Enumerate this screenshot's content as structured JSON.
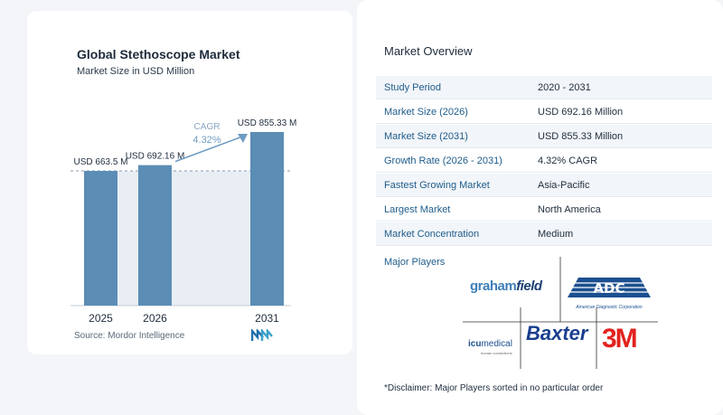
{
  "chart_data": {
    "type": "bar",
    "title": "Global Stethoscope Market",
    "subtitle": "Market Size in USD Million",
    "categories": [
      "2025",
      "2026",
      "2031"
    ],
    "values": [
      663.5,
      692.16,
      855.33
    ],
    "value_labels": [
      "USD 663.5 M",
      "USD 692.16 M",
      "USD 855.33 M"
    ],
    "annotation": {
      "label": "CAGR",
      "value": "4.32%"
    },
    "colors": {
      "bar": "#5b8db5",
      "shade": "#e9eef5",
      "arrow": "#6f9cc2",
      "label": "#8aa7c2"
    }
  },
  "source": "Source:  Mordor Intelligence",
  "overview": {
    "title": "Market Overview",
    "rows": [
      {
        "label": "Study Period",
        "value": "2020 - 2031"
      },
      {
        "label": "Market Size (2026)",
        "value": "USD 692.16 Million"
      },
      {
        "label": "Market Size (2031)",
        "value": "USD 855.33 Million"
      },
      {
        "label": "Growth Rate (2026 - 2031)",
        "value": "4.32% CAGR"
      },
      {
        "label": "Fastest Growing Market",
        "value": "Asia-Pacific"
      },
      {
        "label": "Largest Market",
        "value": "North America"
      },
      {
        "label": "Market Concentration",
        "value": "Medium"
      }
    ]
  },
  "players": {
    "title": "Major Players",
    "logos": [
      "Graham Field",
      "American Diagnostic Corporation",
      "ICU Medical",
      "Baxter",
      "3M"
    ],
    "graham_text_1": "graham",
    "graham_text_2": "field",
    "adc_text": "ADC",
    "adc_caption": "American Diagnostic Corporation",
    "icu_text_1": "icu",
    "icu_text_2": "medical",
    "icu_caption": "human connections",
    "baxter_text": "Baxter",
    "threem_text": "3M"
  },
  "disclaimer": "*Disclaimer: Major Players sorted in no particular order"
}
